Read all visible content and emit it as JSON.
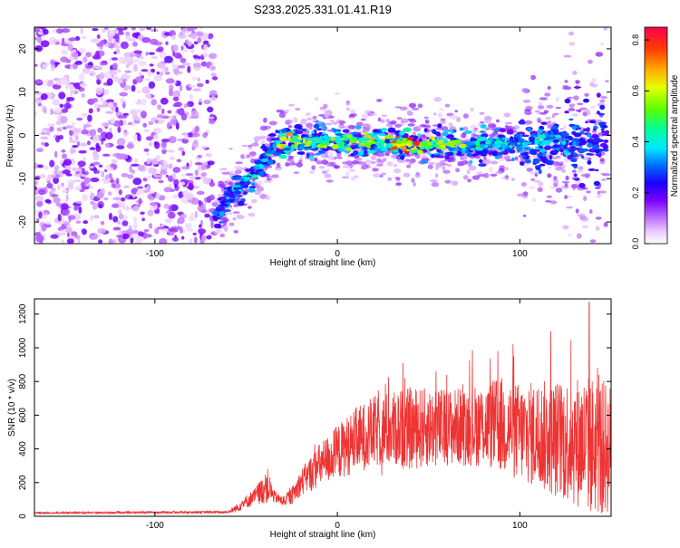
{
  "title": "S233.2025.331.01.41.R19",
  "chart_data": [
    {
      "type": "heatmap",
      "xlabel": "Height of straight line (km)",
      "ylabel": "Frequency (Hz)",
      "xlim": [
        -166,
        150
      ],
      "ylim": [
        -25,
        25
      ],
      "xticks": [
        -100,
        0,
        100
      ],
      "yticks": [
        -20,
        -10,
        0,
        10,
        20
      ],
      "colorbar": {
        "label": "Normalized spectral amplitude",
        "range": [
          0,
          0.85
        ],
        "ticks": [
          0.0,
          0.2,
          0.4,
          0.6,
          0.8
        ]
      },
      "noise_region": {
        "x_range": [
          -166,
          -67
        ],
        "freq_range": [
          -25,
          25
        ],
        "amplitude": 0.1
      },
      "ridge": {
        "description": "Signal ridge frequency (Hz) vs height (km)",
        "x": [
          -67,
          -60,
          -50,
          -40,
          -34,
          -30,
          -20,
          0,
          20,
          40,
          60,
          80,
          100,
          120,
          140,
          148
        ],
        "freq": [
          -19,
          -15,
          -10,
          -6,
          -2,
          -1.5,
          -1,
          -1.5,
          -1.5,
          -2,
          -2,
          -2,
          -2,
          -1.5,
          -1,
          -0.5
        ],
        "amplitude": [
          0.3,
          0.35,
          0.4,
          0.4,
          0.45,
          0.75,
          0.55,
          0.5,
          0.6,
          0.75,
          0.55,
          0.45,
          0.4,
          0.35,
          0.3,
          0.25
        ]
      },
      "grid": false
    },
    {
      "type": "line",
      "xlabel": "Height of straight line (km)",
      "ylabel": "SNR (10 * v/v)",
      "xlim": [
        -166,
        150
      ],
      "ylim": [
        0,
        1290
      ],
      "xticks": [
        -100,
        0,
        100
      ],
      "yticks": [
        0,
        200,
        400,
        600,
        800,
        1000,
        1200
      ],
      "color": "#ee3333",
      "series": [
        {
          "name": "SNR",
          "envelope": {
            "x": [
              -166,
              -60,
              -55,
              -45,
              -38,
              -35,
              -30,
              -25,
              -20,
              -10,
              0,
              10,
              20,
              30,
              40,
              60,
              80,
              90,
              100,
              110,
              120,
              130,
              140,
              150
            ],
            "mean": [
              20,
              25,
              50,
              120,
              180,
              120,
              90,
              120,
              200,
              300,
              380,
              450,
              500,
              520,
              520,
              530,
              540,
              540,
              500,
              480,
              460,
              450,
              420,
              400
            ],
            "spread": [
              8,
              10,
              40,
              80,
              160,
              60,
              40,
              80,
              120,
              200,
              250,
              300,
              330,
              350,
              380,
              350,
              380,
              450,
              450,
              500,
              550,
              600,
              650,
              600
            ]
          },
          "peaks": [
            {
              "x": 36,
              "y": 910
            },
            {
              "x": 88,
              "y": 980
            },
            {
              "x": 117,
              "y": 1100
            },
            {
              "x": 138,
              "y": 1270
            }
          ]
        }
      ],
      "grid": false
    }
  ]
}
